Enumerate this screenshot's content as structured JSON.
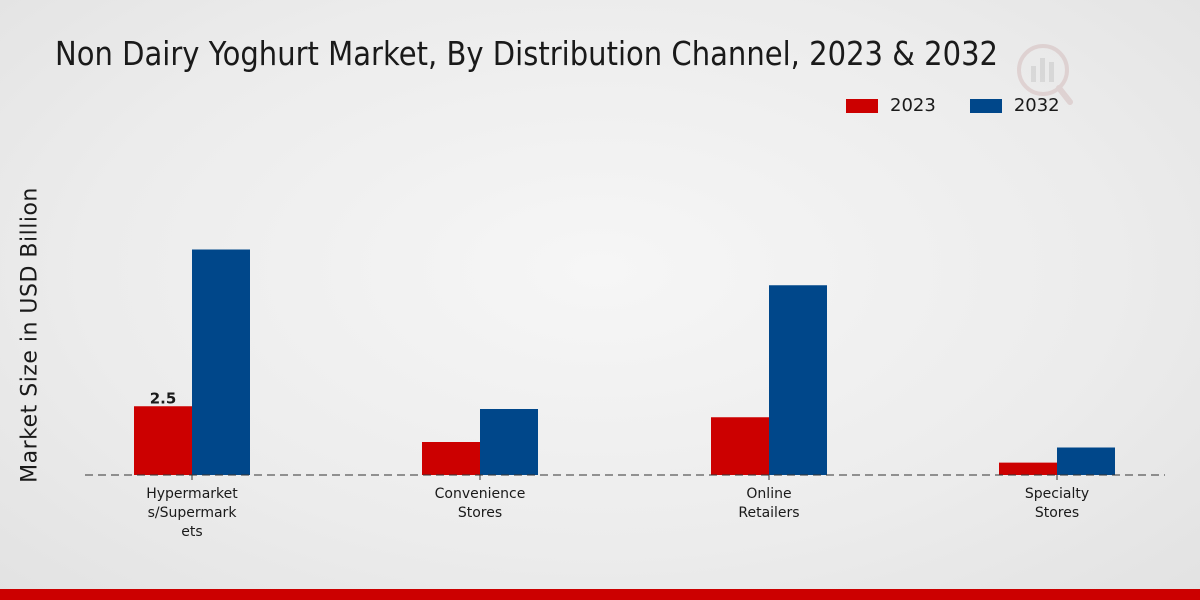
{
  "chart_data": {
    "type": "bar",
    "title": "Non Dairy Yoghurt Market, By Distribution Channel, 2023 & 2032",
    "xlabel": "",
    "ylabel": "Market Size in USD Billion",
    "categories": [
      [
        "Hypermarket",
        "s/Supermark",
        "ets"
      ],
      [
        "Convenience",
        "Stores"
      ],
      [
        "Online",
        "Retailers"
      ],
      [
        "Specialty",
        "Stores"
      ]
    ],
    "series": [
      {
        "name": "2023",
        "color": "#cc0000",
        "values": [
          2.5,
          1.2,
          2.1,
          0.45
        ]
      },
      {
        "name": "2032",
        "color": "#00478a",
        "values": [
          8.2,
          2.4,
          6.9,
          1.0
        ]
      }
    ],
    "data_labels": [
      {
        "series": 0,
        "index": 0,
        "text": "2.5"
      }
    ],
    "ylim": [
      0,
      10
    ],
    "grid": false,
    "legend_position": "top-right"
  }
}
